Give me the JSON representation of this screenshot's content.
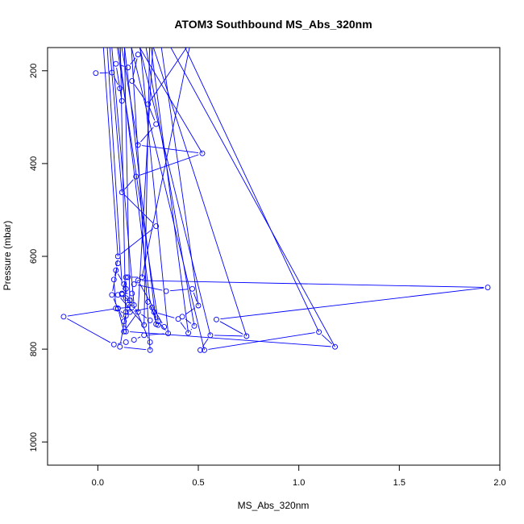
{
  "chart_data": {
    "type": "line",
    "title": "ATOM3 Southbound MS_Abs_320nm",
    "xlabel": "MS_Abs_320nm",
    "ylabel": "Pressure (mbar)",
    "xlim": [
      -0.25,
      2.0
    ],
    "ylim": [
      1050,
      150
    ],
    "y_reversed": true,
    "grid": false,
    "legend": "none",
    "line_color": "#0000ff",
    "marker": "open-circle",
    "x_ticks": [
      "0.0",
      "0.5",
      "1.0",
      "1.5",
      "2.0"
    ],
    "x_tick_values": [
      0,
      0.5,
      1.0,
      1.5,
      2.0
    ],
    "y_ticks": [
      "200",
      "400",
      "600",
      "800",
      "1000"
    ],
    "y_tick_values": [
      200,
      400,
      600,
      800,
      1000
    ],
    "series": [
      {
        "points": [
          [
            -0.01,
            205
          ],
          [
            0.07,
            204
          ],
          [
            0.11,
            238
          ],
          [
            0.12,
            265
          ],
          [
            0.09,
            185
          ],
          [
            0.15,
            193
          ],
          [
            0.2,
            165
          ],
          [
            0.17,
            222
          ],
          [
            0.25,
            272
          ],
          [
            0.29,
            315
          ],
          [
            0.2,
            360
          ],
          [
            0.52,
            378
          ],
          [
            0.19,
            428
          ],
          [
            0.12,
            462
          ],
          [
            0.29,
            535
          ],
          [
            0.1,
            600
          ],
          [
            0.09,
            630
          ],
          [
            0.13,
            660
          ],
          [
            0.15,
            645
          ],
          [
            0.22,
            645
          ],
          [
            0.18,
            660
          ],
          [
            0.34,
            675
          ],
          [
            0.47,
            670
          ],
          [
            0.5,
            706
          ],
          [
            0.42,
            730
          ],
          [
            0.48,
            750
          ],
          [
            0.45,
            765
          ],
          [
            0.4,
            735
          ],
          [
            0.28,
            720
          ],
          [
            0.25,
            698
          ],
          [
            0.3,
            740
          ],
          [
            0.35,
            766
          ],
          [
            0.23,
            770
          ],
          [
            0.18,
            780
          ],
          [
            0.14,
            785
          ],
          [
            0.08,
            790
          ],
          [
            -0.17,
            730
          ],
          [
            0.1,
            712
          ],
          [
            0.13,
            762
          ],
          [
            0.2,
            720
          ],
          [
            0.26,
            738
          ],
          [
            0.23,
            748
          ],
          [
            0.1,
            683
          ],
          [
            0.14,
            670
          ],
          [
            0.12,
            682
          ],
          [
            0.18,
            705
          ],
          [
            0.26,
            785
          ],
          [
            0.26,
            802
          ],
          [
            0.11,
            795
          ],
          [
            0.14,
            720
          ],
          [
            0.16,
            695
          ],
          [
            0.16,
            720
          ],
          [
            0.27,
            710
          ],
          [
            0.29,
            746
          ],
          [
            0.3,
            748
          ],
          [
            0.33,
            752
          ],
          [
            0.2,
            652
          ],
          [
            1.94,
            667
          ],
          [
            0.59,
            736
          ],
          [
            0.74,
            772
          ],
          [
            0.56,
            770
          ],
          [
            0.51,
            802
          ],
          [
            0.53,
            802
          ],
          [
            1.1,
            763
          ],
          [
            1.18,
            795
          ],
          [
            0.14,
            762
          ],
          [
            0.13,
            740
          ],
          [
            0.07,
            683
          ],
          [
            0.1,
            615
          ],
          [
            0.08,
            650
          ],
          [
            0.09,
            712
          ],
          [
            0.17,
            710
          ],
          [
            0.17,
            680
          ],
          [
            0.12,
            680
          ],
          [
            0.14,
            645
          ],
          [
            0.14,
            690
          ],
          [
            0.15,
            705
          ],
          [
            0.14,
            728
          ],
          [
            0.1,
            713
          ]
        ]
      }
    ]
  }
}
